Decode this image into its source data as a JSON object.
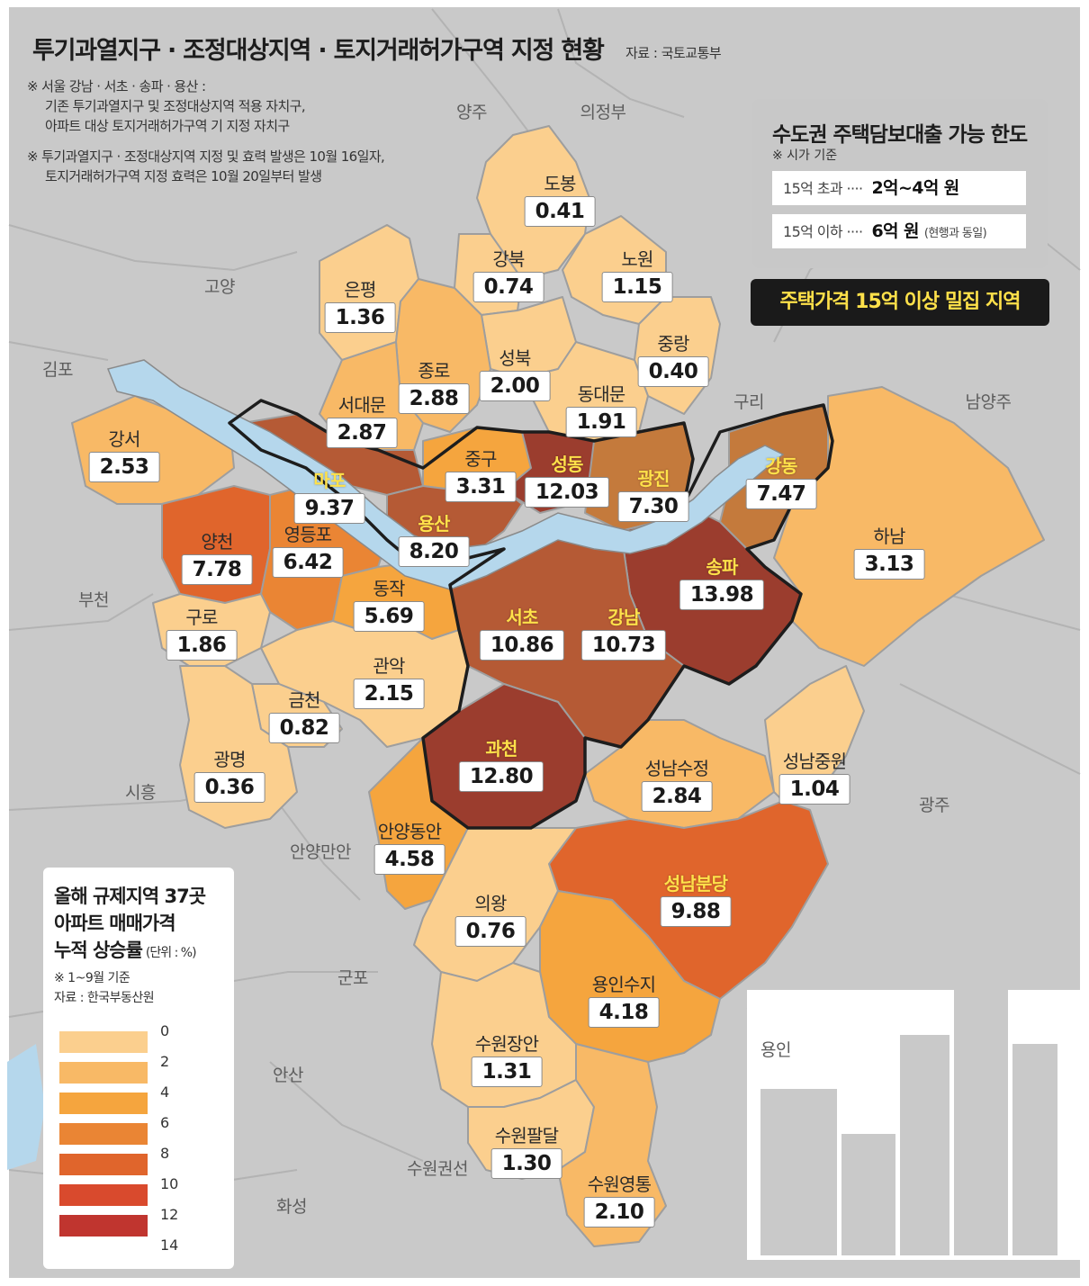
{
  "header": {
    "title": "투기과열지구 · 조정대상지역 · 토지거래허가구역 지정 현황",
    "source": "자료 : 국토교통부",
    "notes": [
      "※ 서울 강남 · 서초 · 송파 · 용산 :",
      "기존 투기과열지구 및 조정대상지역 적용 자치구,",
      "아파트 대상 토지거래허가구역 기 지정 자치구",
      "※ 투기과열지구 · 조정대상지역 지정 및 효력 발생은 10월 16일자,",
      "토지거래허가구역 지정 효력은 10월 20일부터 발생"
    ]
  },
  "loan_box": {
    "title": "수도권 주택담보대출 가능 한도",
    "note": "※ 시가 기준",
    "rows": [
      {
        "label": "15억 초과 ····",
        "amount": "2억~4억 원",
        "remark": ""
      },
      {
        "label": "15억 이하 ····",
        "amount": "6억 원",
        "remark": "(현행과 동일)"
      }
    ]
  },
  "callout": "주택가격 15억 이상 밀집 지역",
  "districts": [
    {
      "name": "도봉",
      "value": "0.41",
      "hot": false
    },
    {
      "name": "강북",
      "value": "0.74",
      "hot": false
    },
    {
      "name": "노원",
      "value": "1.15",
      "hot": false
    },
    {
      "name": "은평",
      "value": "1.36",
      "hot": false
    },
    {
      "name": "중랑",
      "value": "0.40",
      "hot": false
    },
    {
      "name": "성북",
      "value": "2.00",
      "hot": false
    },
    {
      "name": "종로",
      "value": "2.88",
      "hot": false
    },
    {
      "name": "서대문",
      "value": "2.87",
      "hot": false
    },
    {
      "name": "동대문",
      "value": "1.91",
      "hot": false
    },
    {
      "name": "강서",
      "value": "2.53",
      "hot": false
    },
    {
      "name": "마포",
      "value": "9.37",
      "hot": true
    },
    {
      "name": "중구",
      "value": "3.31",
      "hot": false
    },
    {
      "name": "성동",
      "value": "12.03",
      "hot": true
    },
    {
      "name": "광진",
      "value": "7.30",
      "hot": true
    },
    {
      "name": "강동",
      "value": "7.47",
      "hot": true
    },
    {
      "name": "용산",
      "value": "8.20",
      "hot": true
    },
    {
      "name": "양천",
      "value": "7.78",
      "hot": false
    },
    {
      "name": "영등포",
      "value": "6.42",
      "hot": false
    },
    {
      "name": "하남",
      "value": "3.13",
      "hot": false
    },
    {
      "name": "송파",
      "value": "13.98",
      "hot": true
    },
    {
      "name": "동작",
      "value": "5.69",
      "hot": false
    },
    {
      "name": "구로",
      "value": "1.86",
      "hot": false
    },
    {
      "name": "서초",
      "value": "10.86",
      "hot": true
    },
    {
      "name": "강남",
      "value": "10.73",
      "hot": true
    },
    {
      "name": "관악",
      "value": "2.15",
      "hot": false
    },
    {
      "name": "금천",
      "value": "0.82",
      "hot": false
    },
    {
      "name": "광명",
      "value": "0.36",
      "hot": false
    },
    {
      "name": "과천",
      "value": "12.80",
      "hot": true
    },
    {
      "name": "성남수정",
      "value": "2.84",
      "hot": false
    },
    {
      "name": "성남중원",
      "value": "1.04",
      "hot": false
    },
    {
      "name": "안양동안",
      "value": "4.58",
      "hot": false
    },
    {
      "name": "성남분당",
      "value": "9.88",
      "hot": true
    },
    {
      "name": "의왕",
      "value": "0.76",
      "hot": false
    },
    {
      "name": "용인수지",
      "value": "4.18",
      "hot": false
    },
    {
      "name": "수원장안",
      "value": "1.31",
      "hot": false
    },
    {
      "name": "수원팔달",
      "value": "1.30",
      "hot": false
    },
    {
      "name": "수원영통",
      "value": "2.10",
      "hot": false
    }
  ],
  "surrounding_areas": [
    "양주",
    "의정부",
    "고양",
    "김포",
    "구리",
    "남양주",
    "부천",
    "시흥",
    "광주",
    "안양만안",
    "군포",
    "안산",
    "용인",
    "수원권선",
    "화성"
  ],
  "legend": {
    "title_lines": [
      "올해 규제지역 37곳",
      "아파트 매매가격",
      "누적 상승률"
    ],
    "unit": "(단위 : %)",
    "basis": "※ 1~9월 기준",
    "source": "자료 : 한국부동산원",
    "ticks": [
      "0",
      "2",
      "4",
      "6",
      "8",
      "10",
      "12",
      "14"
    ],
    "colors": [
      "#fbcf8e",
      "#f8b966",
      "#f5a53e",
      "#ea8534",
      "#e0652c",
      "#d94a2d",
      "#c0352f"
    ]
  },
  "map_colors": {
    "land": "#c9c9c9",
    "river": "#b5d7ec",
    "c1": "#fbcf8e",
    "c2": "#f8b966",
    "c3": "#f5a53e",
    "c4": "#ea8534",
    "c5": "#e0652c",
    "brown_light": "#c47a3c",
    "brown": "#b55a35",
    "brown_dark": "#9b3d2e"
  }
}
